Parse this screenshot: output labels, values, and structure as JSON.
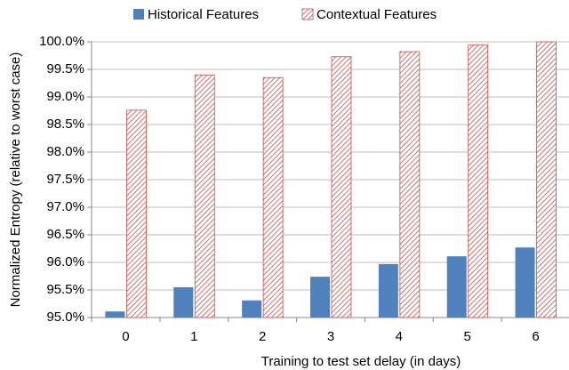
{
  "chart_data": {
    "type": "bar",
    "xlabel": "Training to test set delay (in days)",
    "ylabel": "Normalized Entropy (relative to worst case)",
    "categories": [
      "0",
      "1",
      "2",
      "3",
      "4",
      "5",
      "6"
    ],
    "series": [
      {
        "name": "Historical Features",
        "color": "#4f81bd",
        "values": [
          95.11,
          95.55,
          95.31,
          95.74,
          95.97,
          96.11,
          96.27
        ]
      },
      {
        "name": "Contextual Features",
        "color": "#c0504d",
        "hatch": true,
        "values": [
          98.76,
          99.4,
          99.35,
          99.73,
          99.82,
          99.94,
          100.0
        ]
      }
    ],
    "ylim": [
      95,
      100
    ],
    "yticks": [
      {
        "value": 95,
        "label": "95.0%"
      },
      {
        "value": 95.5,
        "label": "95.5%"
      },
      {
        "value": 96,
        "label": "96.0%"
      },
      {
        "value": 96.5,
        "label": "96.5%"
      },
      {
        "value": 97,
        "label": "97.0%"
      },
      {
        "value": 97.5,
        "label": "97.5%"
      },
      {
        "value": 98,
        "label": "98.0%"
      },
      {
        "value": 98.5,
        "label": "98.5%"
      },
      {
        "value": 99,
        "label": "99.0%"
      },
      {
        "value": 99.5,
        "label": "99.5%"
      },
      {
        "value": 100,
        "label": "100.0%"
      }
    ],
    "grid": true,
    "legend": "top"
  }
}
